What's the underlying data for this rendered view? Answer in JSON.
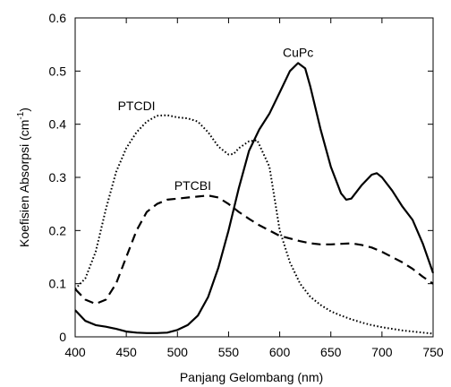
{
  "chart_data": {
    "type": "line",
    "xlabel": "Panjang Gelombang (nm)",
    "ylabel": "Koefisien Absorpsi (cm",
    "ylabel_sup": "-1",
    "ylabel_close": ")",
    "xlim": [
      400,
      750
    ],
    "ylim": [
      0,
      0.6
    ],
    "xticks": [
      "400",
      "450",
      "500",
      "550",
      "600",
      "650",
      "700",
      "750"
    ],
    "yticks": [
      "0",
      "0.1",
      "0.2",
      "0.3",
      "0.4",
      "0.5",
      "0.6"
    ],
    "grid": false,
    "series": [
      {
        "name": "PTCDI",
        "style": "dotted",
        "label_at": [
          460,
          0.435
        ],
        "points": [
          [
            400,
            0.09
          ],
          [
            410,
            0.11
          ],
          [
            420,
            0.16
          ],
          [
            430,
            0.24
          ],
          [
            440,
            0.31
          ],
          [
            450,
            0.355
          ],
          [
            460,
            0.385
          ],
          [
            470,
            0.405
          ],
          [
            480,
            0.416
          ],
          [
            490,
            0.417
          ],
          [
            500,
            0.413
          ],
          [
            510,
            0.411
          ],
          [
            520,
            0.405
          ],
          [
            530,
            0.385
          ],
          [
            540,
            0.358
          ],
          [
            550,
            0.343
          ],
          [
            555,
            0.344
          ],
          [
            560,
            0.355
          ],
          [
            570,
            0.368
          ],
          [
            578,
            0.37
          ],
          [
            590,
            0.32
          ],
          [
            600,
            0.2
          ],
          [
            610,
            0.14
          ],
          [
            620,
            0.1
          ],
          [
            630,
            0.075
          ],
          [
            640,
            0.06
          ],
          [
            650,
            0.048
          ],
          [
            660,
            0.04
          ],
          [
            670,
            0.033
          ],
          [
            680,
            0.027
          ],
          [
            690,
            0.022
          ],
          [
            700,
            0.018
          ],
          [
            720,
            0.012
          ],
          [
            740,
            0.008
          ],
          [
            750,
            0.006
          ]
        ]
      },
      {
        "name": "PTCBI",
        "style": "dashed",
        "label_at": [
          515,
          0.285
        ],
        "points": [
          [
            400,
            0.09
          ],
          [
            410,
            0.07
          ],
          [
            420,
            0.062
          ],
          [
            430,
            0.07
          ],
          [
            440,
            0.1
          ],
          [
            450,
            0.15
          ],
          [
            460,
            0.2
          ],
          [
            470,
            0.235
          ],
          [
            480,
            0.25
          ],
          [
            490,
            0.258
          ],
          [
            500,
            0.26
          ],
          [
            510,
            0.262
          ],
          [
            520,
            0.264
          ],
          [
            530,
            0.266
          ],
          [
            540,
            0.262
          ],
          [
            550,
            0.25
          ],
          [
            560,
            0.235
          ],
          [
            570,
            0.222
          ],
          [
            580,
            0.21
          ],
          [
            590,
            0.2
          ],
          [
            600,
            0.19
          ],
          [
            610,
            0.185
          ],
          [
            620,
            0.18
          ],
          [
            630,
            0.176
          ],
          [
            640,
            0.174
          ],
          [
            650,
            0.174
          ],
          [
            660,
            0.175
          ],
          [
            670,
            0.176
          ],
          [
            680,
            0.173
          ],
          [
            690,
            0.168
          ],
          [
            700,
            0.16
          ],
          [
            710,
            0.15
          ],
          [
            720,
            0.14
          ],
          [
            730,
            0.128
          ],
          [
            740,
            0.113
          ],
          [
            750,
            0.1
          ]
        ]
      },
      {
        "name": "CuPc",
        "style": "solid",
        "label_at": [
          618,
          0.535
        ],
        "points": [
          [
            400,
            0.05
          ],
          [
            410,
            0.03
          ],
          [
            420,
            0.022
          ],
          [
            430,
            0.019
          ],
          [
            440,
            0.015
          ],
          [
            450,
            0.01
          ],
          [
            460,
            0.008
          ],
          [
            470,
            0.007
          ],
          [
            480,
            0.007
          ],
          [
            490,
            0.008
          ],
          [
            500,
            0.013
          ],
          [
            510,
            0.022
          ],
          [
            520,
            0.04
          ],
          [
            530,
            0.075
          ],
          [
            540,
            0.13
          ],
          [
            550,
            0.2
          ],
          [
            560,
            0.28
          ],
          [
            570,
            0.35
          ],
          [
            580,
            0.39
          ],
          [
            590,
            0.42
          ],
          [
            600,
            0.46
          ],
          [
            610,
            0.5
          ],
          [
            618,
            0.515
          ],
          [
            625,
            0.505
          ],
          [
            630,
            0.47
          ],
          [
            640,
            0.39
          ],
          [
            650,
            0.32
          ],
          [
            660,
            0.27
          ],
          [
            665,
            0.258
          ],
          [
            670,
            0.26
          ],
          [
            680,
            0.285
          ],
          [
            690,
            0.305
          ],
          [
            695,
            0.308
          ],
          [
            700,
            0.3
          ],
          [
            710,
            0.275
          ],
          [
            720,
            0.245
          ],
          [
            730,
            0.22
          ],
          [
            740,
            0.175
          ],
          [
            750,
            0.12
          ]
        ]
      }
    ]
  }
}
